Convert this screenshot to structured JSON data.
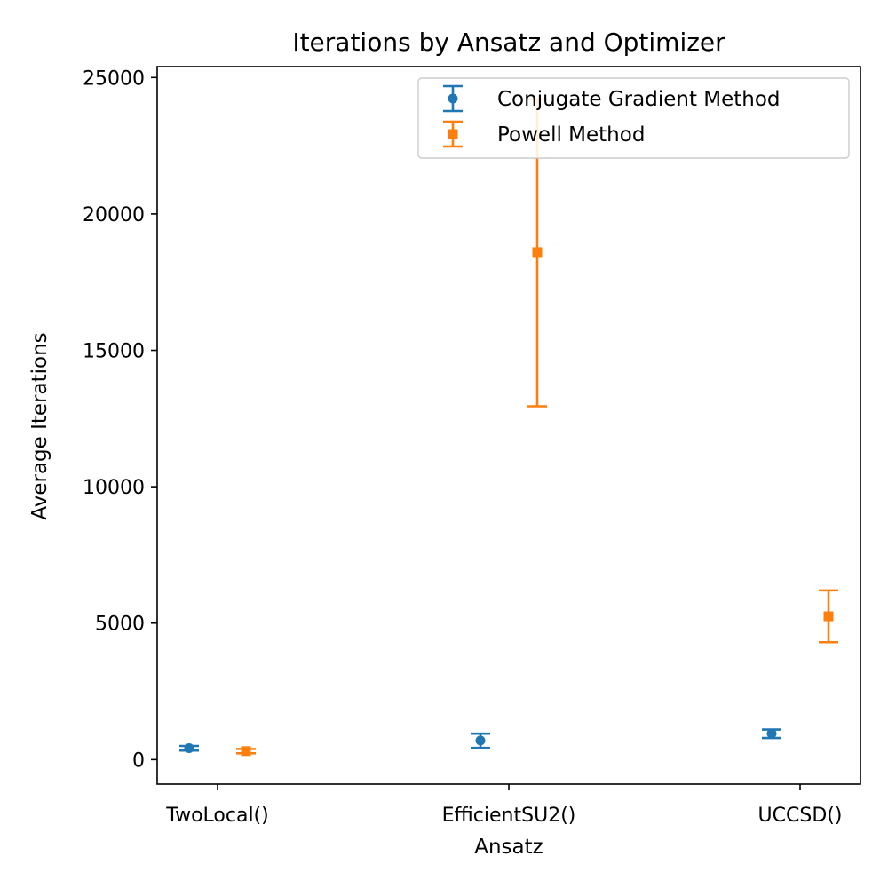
{
  "chart_data": {
    "type": "errorbar",
    "title": "Iterations by Ansatz and Optimizer",
    "xlabel": "Ansatz",
    "ylabel": "Average Iterations",
    "categories": [
      "TwoLocal()",
      "EfficientSU2()",
      "UCCSD()"
    ],
    "ylim": [
      -900,
      25400
    ],
    "yticks": [
      0,
      5000,
      10000,
      15000,
      20000,
      25000
    ],
    "ytick_labels": [
      "0",
      "5000",
      "10000",
      "15000",
      "20000",
      "25000"
    ],
    "grid": false,
    "legend_position": "top-right",
    "series": [
      {
        "name": "Conjugate Gradient Method",
        "color": "#1f77b4",
        "marker": "circle",
        "values": [
          420,
          700,
          950
        ],
        "lower": [
          330,
          430,
          790
        ],
        "upper": [
          500,
          950,
          1100
        ]
      },
      {
        "name": "Powell Method",
        "color": "#ff7f0e",
        "marker": "square",
        "values": [
          310,
          18600,
          5250
        ],
        "lower": [
          230,
          12950,
          4300
        ],
        "upper": [
          390,
          24200,
          6200
        ]
      }
    ]
  }
}
